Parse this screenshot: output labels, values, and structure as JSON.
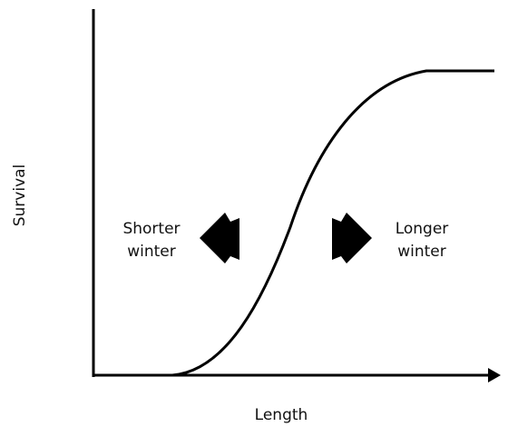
{
  "y_axis_label": "Survival",
  "x_axis_label": "Length",
  "left_label": [
    "Shorter",
    "winter"
  ],
  "right_label": [
    "Longer",
    "winter"
  ]
}
